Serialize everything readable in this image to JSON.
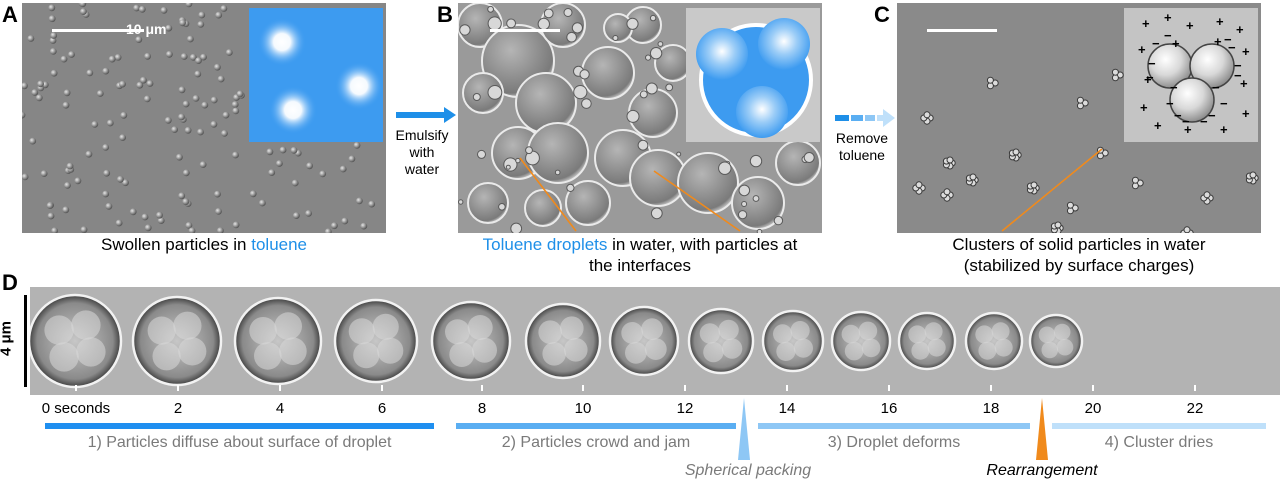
{
  "panels": {
    "a": {
      "letter": "A",
      "scale_label": "10 μm",
      "caption_prefix": "Swollen particles in ",
      "caption_highlight": "toluene"
    },
    "b": {
      "letter": "B",
      "caption_highlight": "Toluene droplets",
      "caption_line1": " in water, with particles at",
      "caption_line2": "the interfaces"
    },
    "c": {
      "letter": "C",
      "caption_line1": "Clusters of solid particles in water",
      "caption_line2": "(stabilized by surface charges)"
    },
    "d": {
      "letter": "D",
      "scale_label": "4 μm"
    }
  },
  "arrows": {
    "ab": {
      "line1": "Emulsify",
      "line2": "with",
      "line3": "water"
    },
    "bc": {
      "line1": "Remove",
      "line2": "toluene"
    }
  },
  "timeline": {
    "labels": [
      "0 seconds",
      "2",
      "4",
      "6",
      "8",
      "10",
      "12",
      "14",
      "16",
      "18",
      "20",
      "22"
    ],
    "phases": [
      "1) Particles diffuse about surface of droplet",
      "2) Particles crowd and jam",
      "3) Droplet deforms",
      "4) Cluster dries"
    ],
    "events": {
      "spherical": "Spherical packing",
      "rearrangement": "Rearrangement"
    }
  },
  "colors": {
    "accent_blue": "#1e8fe8",
    "phase1": "#1f8ff0",
    "phase2": "#5aaef2",
    "phase3": "#8ec7f5",
    "phase4": "#bfe0fa",
    "orange": "#f08a1c",
    "light_blue_marker": "#8ec7f5"
  }
}
